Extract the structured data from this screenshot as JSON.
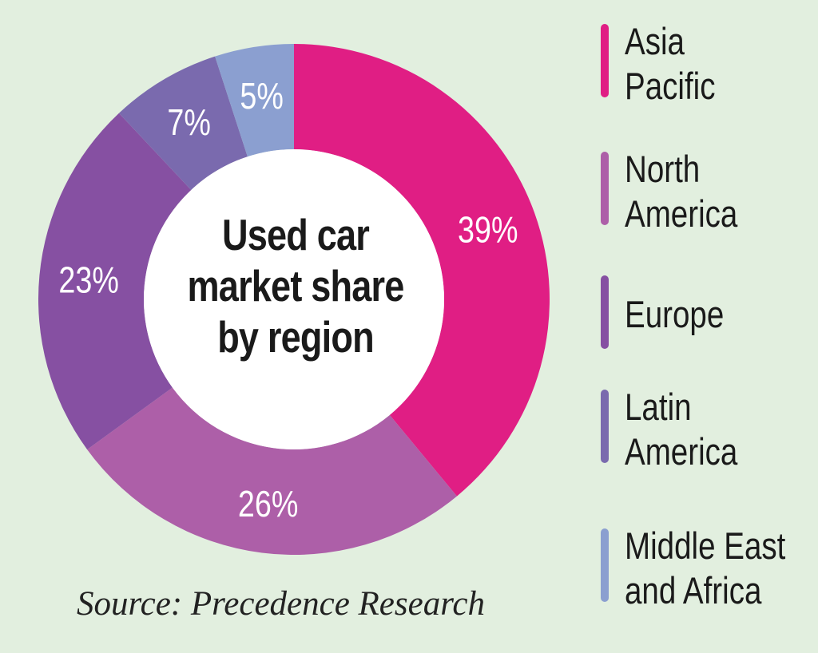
{
  "chart_data": {
    "type": "pie",
    "categories": [
      "Asia Pacific",
      "North America",
      "Europe",
      "Latin America",
      "Middle East and Africa"
    ],
    "values": [
      39,
      26,
      23,
      7,
      5
    ],
    "data_labels": [
      "39%",
      "26%",
      "23%",
      "7%",
      "5%"
    ],
    "colors": [
      "#e01e84",
      "#ad5fa8",
      "#8650a2",
      "#7a6aae",
      "#8b9fd0"
    ],
    "title_lines": [
      "Used car",
      "market share",
      "by region"
    ],
    "legend_lines": [
      [
        "Asia",
        "Pacific"
      ],
      [
        "North",
        "America"
      ],
      [
        "Europe"
      ],
      [
        "Latin",
        "America"
      ],
      [
        "Middle East",
        "and Africa"
      ]
    ],
    "legend_position": "right",
    "source": "Source: Precedence Research"
  }
}
